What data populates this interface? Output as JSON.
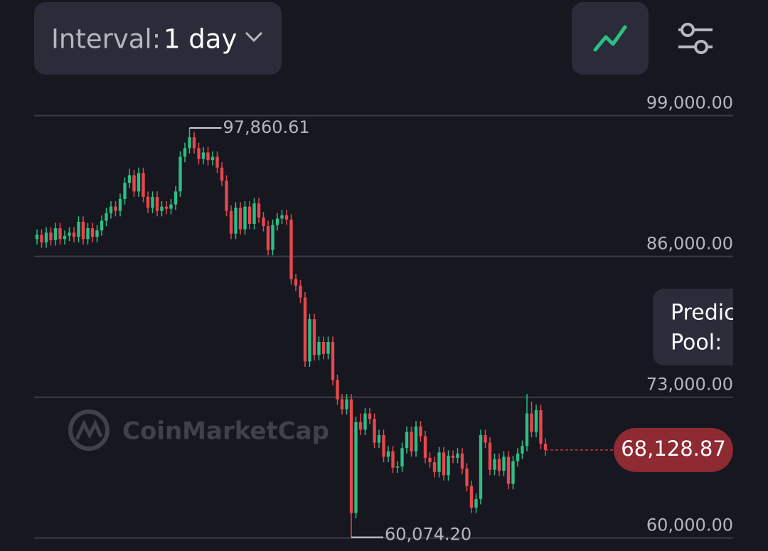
{
  "controls": {
    "interval_label": "Interval:",
    "interval_value": "1 day",
    "prediction_line1": "Predic",
    "prediction_line2": "Pool:",
    "watermark": "CoinMarketCap"
  },
  "chart_data": {
    "type": "candlestick",
    "up_color": "#2ebd85",
    "down_color": "#e5484d",
    "grid": true,
    "ylim": [
      58800,
      101800
    ],
    "yticks": [
      {
        "value": 60000,
        "label": "60,000.00"
      },
      {
        "value": 73000,
        "label": "73,000.00"
      },
      {
        "value": 86000,
        "label": "86,000.00"
      },
      {
        "value": 99000,
        "label": "99,000.00"
      }
    ],
    "high_annotation": {
      "value": 97860.61,
      "label": "97,860.61"
    },
    "low_annotation": {
      "value": 60074.2,
      "label": "60,074.20"
    },
    "last_price": {
      "value": 68128.87,
      "label": "68,128.87"
    },
    "candles": [
      [
        87600,
        88500,
        87100,
        88000
      ],
      [
        88000,
        88500,
        86800,
        87300
      ],
      [
        87300,
        88700,
        86800,
        88200
      ],
      [
        88200,
        88700,
        87000,
        87500
      ],
      [
        87500,
        89100,
        87000,
        88600
      ],
      [
        88600,
        89100,
        87100,
        87600
      ],
      [
        87600,
        88400,
        87100,
        87900
      ],
      [
        87900,
        88700,
        87400,
        88200
      ],
      [
        88200,
        88700,
        87300,
        87800
      ],
      [
        87800,
        89700,
        87300,
        89200
      ],
      [
        89200,
        89700,
        87100,
        87600
      ],
      [
        87600,
        89100,
        87100,
        88600
      ],
      [
        88600,
        89100,
        87300,
        87800
      ],
      [
        87800,
        88900,
        87300,
        88400
      ],
      [
        88400,
        89800,
        87900,
        89300
      ],
      [
        89300,
        90500,
        88800,
        90000
      ],
      [
        90000,
        91100,
        89500,
        90600
      ],
      [
        90600,
        91100,
        89700,
        90200
      ],
      [
        90200,
        91800,
        89700,
        91300
      ],
      [
        91300,
        93300,
        90800,
        92800
      ],
      [
        92800,
        94100,
        92300,
        93500
      ],
      [
        93500,
        94000,
        91500,
        92000
      ],
      [
        92000,
        94200,
        91500,
        93700
      ],
      [
        93700,
        94200,
        91000,
        91500
      ],
      [
        91500,
        92000,
        90000,
        90500
      ],
      [
        90500,
        92000,
        90000,
        91500
      ],
      [
        91500,
        92000,
        89700,
        90200
      ],
      [
        90200,
        91100,
        89700,
        90600
      ],
      [
        90600,
        91100,
        89900,
        90400
      ],
      [
        90400,
        91300,
        89900,
        90800
      ],
      [
        90800,
        92500,
        90300,
        92000
      ],
      [
        92000,
        95700,
        91500,
        95200
      ],
      [
        95200,
        96500,
        94700,
        96000
      ],
      [
        96000,
        97860.61,
        95500,
        97000
      ],
      [
        97000,
        97500,
        95500,
        96000
      ],
      [
        96000,
        96500,
        94500,
        95000
      ],
      [
        95000,
        96100,
        94500,
        95600
      ],
      [
        95600,
        96100,
        94400,
        94900
      ],
      [
        94900,
        95700,
        94400,
        95200
      ],
      [
        95200,
        95700,
        93700,
        94200
      ],
      [
        94200,
        94700,
        92500,
        93000
      ],
      [
        93000,
        93500,
        89700,
        90200
      ],
      [
        90200,
        90700,
        87600,
        88100
      ],
      [
        88100,
        91000,
        87600,
        90500
      ],
      [
        90500,
        91000,
        88000,
        88500
      ],
      [
        88500,
        91100,
        88000,
        90600
      ],
      [
        90600,
        91100,
        88500,
        89000
      ],
      [
        89000,
        91400,
        88500,
        90900
      ],
      [
        90900,
        91400,
        89100,
        89600
      ],
      [
        89600,
        90100,
        88300,
        88800
      ],
      [
        88800,
        89300,
        86100,
        86600
      ],
      [
        86600,
        89400,
        86100,
        88900
      ],
      [
        88900,
        90000,
        88400,
        89500
      ],
      [
        89500,
        90300,
        89000,
        89800
      ],
      [
        89800,
        90300,
        88900,
        89400
      ],
      [
        89400,
        89900,
        83400,
        83900
      ],
      [
        83900,
        84400,
        82800,
        83300
      ],
      [
        83300,
        83800,
        81700,
        82200
      ],
      [
        82200,
        82700,
        75800,
        76300
      ],
      [
        76300,
        80700,
        75800,
        80200
      ],
      [
        80200,
        80700,
        76400,
        76900
      ],
      [
        76900,
        78600,
        76400,
        78100
      ],
      [
        78100,
        78600,
        76500,
        77000
      ],
      [
        77000,
        78600,
        76500,
        78100
      ],
      [
        78100,
        78600,
        74100,
        74600
      ],
      [
        74600,
        75100,
        72300,
        72800
      ],
      [
        72800,
        73300,
        71400,
        71900
      ],
      [
        71900,
        73300,
        71400,
        72800
      ],
      [
        72800,
        73300,
        60074.2,
        62300
      ],
      [
        62300,
        71200,
        61800,
        70700
      ],
      [
        70700,
        71500,
        69500,
        70000
      ],
      [
        70000,
        72000,
        69500,
        71500
      ],
      [
        71500,
        72000,
        70500,
        71000
      ],
      [
        71000,
        71500,
        68300,
        68800
      ],
      [
        68800,
        70000,
        68300,
        69500
      ],
      [
        69500,
        70000,
        67000,
        67500
      ],
      [
        67500,
        68500,
        67000,
        68000
      ],
      [
        68000,
        68500,
        66000,
        66500
      ],
      [
        66500,
        67100,
        66000,
        66600
      ],
      [
        66600,
        68800,
        66100,
        68300
      ],
      [
        68300,
        70300,
        67800,
        69800
      ],
      [
        69800,
        70300,
        67500,
        68000
      ],
      [
        68000,
        70800,
        67500,
        70300
      ],
      [
        70300,
        70800,
        68900,
        69400
      ],
      [
        69400,
        69900,
        66900,
        67400
      ],
      [
        67400,
        67900,
        66500,
        67000
      ],
      [
        67000,
        67500,
        65600,
        66100
      ],
      [
        66100,
        68400,
        65600,
        67900
      ],
      [
        67900,
        68400,
        65300,
        65800
      ],
      [
        65800,
        68100,
        65300,
        67600
      ],
      [
        67600,
        68100,
        66900,
        67400
      ],
      [
        67400,
        68300,
        66900,
        67800
      ],
      [
        67800,
        68300,
        65900,
        66400
      ],
      [
        66400,
        66900,
        64300,
        64800
      ],
      [
        64800,
        65300,
        62300,
        62800
      ],
      [
        62800,
        64100,
        62300,
        63600
      ],
      [
        63600,
        70000,
        63100,
        69500
      ],
      [
        69500,
        70000,
        68300,
        68800
      ],
      [
        68800,
        69300,
        65800,
        66300
      ],
      [
        66300,
        67800,
        65800,
        67300
      ],
      [
        67300,
        67800,
        65700,
        66200
      ],
      [
        66200,
        68000,
        65700,
        67500
      ],
      [
        67500,
        68000,
        64500,
        65000
      ],
      [
        65000,
        67600,
        64500,
        67100
      ],
      [
        67100,
        68300,
        66600,
        67800
      ],
      [
        67800,
        69000,
        67300,
        68500
      ],
      [
        68500,
        73300,
        68000,
        71500
      ],
      [
        71500,
        72600,
        69300,
        69800
      ],
      [
        69800,
        72300,
        69300,
        71800
      ],
      [
        71800,
        72300,
        68200,
        68700
      ],
      [
        68700,
        69200,
        67600,
        68128.87
      ]
    ]
  }
}
